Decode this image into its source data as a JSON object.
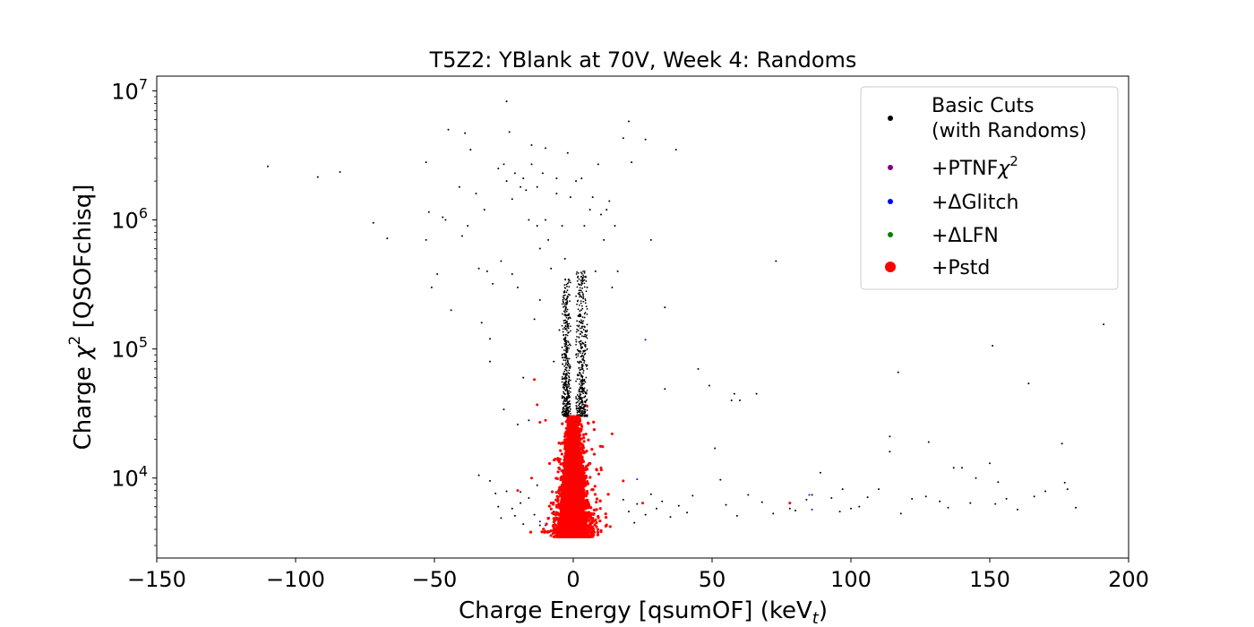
{
  "chart_data": {
    "type": "scatter",
    "title": "T5Z2: YBlank at 70V, Week 4: Randoms",
    "xlabel_main": "Charge Energy [qsumOF] (keV",
    "xlabel_sub": "t",
    "xlabel_close": ")",
    "ylabel_pre": "Charge ",
    "ylabel_chi": "χ",
    "ylabel_sup": "2",
    "ylabel_post": " [QSOFchisq]",
    "xlim": [
      -150,
      200
    ],
    "ylim": [
      2400,
      13000000
    ],
    "yscale": "log",
    "grid": false,
    "legend_position": "top-right",
    "x_ticks": [
      "−150",
      "−100",
      "−50",
      "0",
      "50",
      "100",
      "150",
      "200"
    ],
    "x_tick_values": [
      -150,
      -100,
      -50,
      0,
      50,
      100,
      150,
      200
    ],
    "y_ticks": [
      {
        "base": "10",
        "exp": "4",
        "value": 10000
      },
      {
        "base": "10",
        "exp": "5",
        "value": 100000
      },
      {
        "base": "10",
        "exp": "6",
        "value": 1000000
      },
      {
        "base": "10",
        "exp": "7",
        "value": 10000000
      }
    ],
    "legend": [
      {
        "label_line1": "Basic Cuts",
        "label_line2": "(with Randoms)",
        "color": "#000000"
      },
      {
        "label": "+PTNF",
        "label_chi": "χ",
        "label_sup": "2",
        "color": "#800080"
      },
      {
        "label": "+ΔGlitch",
        "color": "#0000ff"
      },
      {
        "label": "+ΔLFN",
        "color": "#008000"
      },
      {
        "label": "+Pstd",
        "color": "#ff0000"
      }
    ],
    "series": [
      {
        "name": "Basic Cuts (with Randoms)",
        "color": "#000000",
        "points": [
          [
            -110,
            2600000
          ],
          [
            -92,
            2150000
          ],
          [
            -84,
            2350000
          ],
          [
            -72,
            950000
          ],
          [
            -67,
            720000
          ],
          [
            -53,
            700000
          ],
          [
            -53,
            2800000
          ],
          [
            -52,
            1150000
          ],
          [
            -51,
            300000
          ],
          [
            -49,
            380000
          ],
          [
            -47,
            1050000
          ],
          [
            -46,
            1000000
          ],
          [
            -45,
            5000000
          ],
          [
            -44,
            200000
          ],
          [
            -41,
            1800000
          ],
          [
            -40,
            750000
          ],
          [
            -39,
            4700000
          ],
          [
            -38,
            900000
          ],
          [
            -37,
            3500000
          ],
          [
            -35,
            1600000
          ],
          [
            -34,
            420000
          ],
          [
            -34,
            10500
          ],
          [
            -33,
            160000
          ],
          [
            -32,
            1200000
          ],
          [
            -31,
            400000
          ],
          [
            -30,
            80000
          ],
          [
            -30,
            120000
          ],
          [
            -29,
            320000
          ],
          [
            -27,
            2500000
          ],
          [
            -26,
            480000
          ],
          [
            -25,
            34000
          ],
          [
            -25,
            2700000
          ],
          [
            -24,
            8300000
          ],
          [
            -24,
            2000000
          ],
          [
            -23,
            4800000
          ],
          [
            -22,
            1450000
          ],
          [
            -22,
            380000
          ],
          [
            -21,
            2300000
          ],
          [
            -20,
            26000
          ],
          [
            -20,
            300000
          ],
          [
            -19,
            7800
          ],
          [
            -19,
            1800000
          ],
          [
            -18,
            2100000
          ],
          [
            -18,
            60000
          ],
          [
            -17,
            1700000
          ],
          [
            -16,
            1000000
          ],
          [
            -16,
            28000
          ],
          [
            -15,
            3800000
          ],
          [
            -15,
            2700000
          ],
          [
            -14,
            170000
          ],
          [
            -13,
            1800000
          ],
          [
            -13,
            900000
          ],
          [
            -12,
            240000
          ],
          [
            -12,
            600000
          ],
          [
            -11,
            2300000
          ],
          [
            -10,
            3600000
          ],
          [
            -10,
            1000000
          ],
          [
            -9,
            700000
          ],
          [
            -8,
            420000
          ],
          [
            -7,
            5500
          ],
          [
            -7,
            80000
          ],
          [
            -6,
            2100000
          ],
          [
            -6,
            1600000
          ],
          [
            -5,
            140000
          ],
          [
            -4,
            900000
          ],
          [
            -3,
            500000
          ],
          [
            -2,
            3300000
          ],
          [
            -1,
            1500000
          ],
          [
            1,
            2000000
          ],
          [
            2,
            180000
          ],
          [
            3,
            2100000
          ],
          [
            4,
            900000
          ],
          [
            5,
            300000
          ],
          [
            6,
            1200000
          ],
          [
            7,
            1500000
          ],
          [
            8,
            400000
          ],
          [
            9,
            2700000
          ],
          [
            10,
            1100000
          ],
          [
            11,
            700000
          ],
          [
            12,
            1200000
          ],
          [
            13,
            1400000
          ],
          [
            14,
            300000
          ],
          [
            15,
            900000
          ],
          [
            16,
            400000
          ],
          [
            18,
            4300000
          ],
          [
            20,
            5800000
          ],
          [
            21,
            2800000
          ],
          [
            22,
            4500
          ],
          [
            26,
            4200000
          ],
          [
            28,
            700000
          ],
          [
            33,
            210000
          ],
          [
            33,
            49000
          ],
          [
            37,
            3500000
          ],
          [
            45,
            70000
          ],
          [
            49,
            52000
          ],
          [
            51,
            17000
          ],
          [
            53,
            9700
          ],
          [
            57,
            40000
          ],
          [
            58,
            45000
          ],
          [
            60,
            40000
          ],
          [
            63,
            7400
          ],
          [
            66,
            45000
          ],
          [
            73,
            480000
          ],
          [
            78,
            5800
          ],
          [
            80,
            5600
          ],
          [
            89,
            11000
          ],
          [
            93,
            7000
          ],
          [
            96,
            5500
          ],
          [
            97,
            8200
          ],
          [
            100,
            5800
          ],
          [
            110,
            8200
          ],
          [
            114,
            16000
          ],
          [
            114,
            21000
          ],
          [
            117,
            66000
          ],
          [
            118,
            5300
          ],
          [
            127,
            7200
          ],
          [
            128,
            19000
          ],
          [
            132,
            6600
          ],
          [
            137,
            12000
          ],
          [
            140,
            12000
          ],
          [
            145,
            10000
          ],
          [
            150,
            13000
          ],
          [
            151,
            106000
          ],
          [
            152,
            6300
          ],
          [
            153,
            9300
          ],
          [
            164,
            54000
          ],
          [
            166,
            7200
          ],
          [
            176,
            18500
          ],
          [
            177,
            9200
          ],
          [
            178,
            8200
          ],
          [
            181,
            5900
          ],
          [
            191,
            155000
          ],
          [
            -30,
            9500
          ],
          [
            -28,
            7600
          ],
          [
            -27,
            6000
          ],
          [
            -26,
            4900
          ],
          [
            -24,
            7900
          ],
          [
            -22,
            5800
          ],
          [
            -21,
            5100
          ],
          [
            -19,
            6400
          ],
          [
            -18,
            4400
          ],
          [
            -16,
            7000
          ],
          [
            -14,
            5200
          ],
          [
            -13,
            8800
          ],
          [
            -12,
            4300
          ],
          [
            18,
            6800
          ],
          [
            20,
            5500
          ],
          [
            23,
            6300
          ],
          [
            26,
            5200
          ],
          [
            28,
            7500
          ],
          [
            30,
            5800
          ],
          [
            32,
            6600
          ],
          [
            35,
            5000
          ],
          [
            38,
            6100
          ],
          [
            41,
            5400
          ],
          [
            43,
            7300
          ],
          [
            55,
            6200
          ],
          [
            59,
            5100
          ],
          [
            68,
            6500
          ],
          [
            72,
            5300
          ],
          [
            84,
            6800
          ],
          [
            86,
            7400
          ],
          [
            103,
            6000
          ],
          [
            106,
            7100
          ],
          [
            122,
            6900
          ],
          [
            135,
            5900
          ],
          [
            143,
            6400
          ],
          [
            156,
            6900
          ],
          [
            160,
            5700
          ],
          [
            170,
            7900
          ]
        ]
      },
      {
        "name": "+ΔGlitch",
        "color": "#0000ff",
        "points": [
          [
            26,
            118000
          ],
          [
            85,
            7400
          ],
          [
            86,
            5700
          ],
          [
            -12,
            4600
          ],
          [
            -10,
            4300
          ],
          [
            23,
            9800
          ]
        ]
      },
      {
        "name": "+Pstd",
        "color": "#ff0000",
        "points": [
          [
            -14,
            58000
          ],
          [
            -13,
            37000
          ],
          [
            -12,
            27000
          ],
          [
            -15,
            10000
          ],
          [
            -10,
            28000
          ],
          [
            5,
            36000
          ],
          [
            14,
            22000
          ],
          [
            18,
            9500
          ],
          [
            25,
            6400
          ],
          [
            78,
            6400
          ],
          [
            -20,
            8000
          ],
          [
            10,
            12000
          ]
        ]
      }
    ],
    "dense_core": [
      {
        "xmin": -6,
        "xmax": 6,
        "ymin": 3500,
        "ymax": 30000,
        "color": "#ff0000",
        "count": 5500
      },
      {
        "xmin": -9,
        "xmax": 9,
        "ymin": 3500,
        "ymax": 15000,
        "color": "#ff0000",
        "count": 1500
      },
      {
        "xmin": -15,
        "xmax": 17,
        "ymin": 3800,
        "ymax": 28000,
        "color": "#ff0000",
        "count": 350
      },
      {
        "xmin": -4,
        "xmax": -1,
        "ymin": 30000,
        "ymax": 350000,
        "color": "#000000",
        "count": 420
      },
      {
        "xmin": 1,
        "xmax": 5,
        "ymin": 30000,
        "ymax": 400000,
        "color": "#000000",
        "count": 420
      }
    ]
  }
}
